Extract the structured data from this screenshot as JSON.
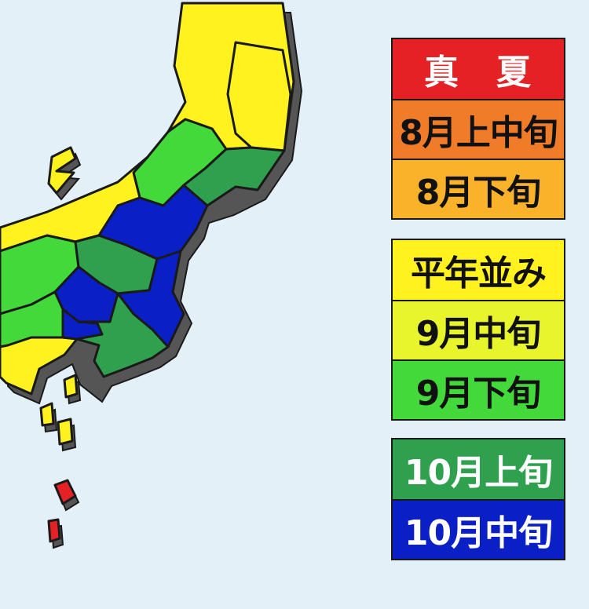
{
  "colors": {
    "sea": "#e3f0f8",
    "outline": "#1a1a1a",
    "shadow": "#555555"
  },
  "legend": {
    "groups": [
      {
        "items": [
          {
            "label": "真　夏",
            "color": "#e52125",
            "text_color": "#ffffff"
          },
          {
            "label": "8月上中旬",
            "color": "#f07c2a",
            "text_color": "#111111"
          },
          {
            "label": "8月下旬",
            "color": "#fbb22b",
            "text_color": "#111111"
          }
        ]
      },
      {
        "items": [
          {
            "label": "平年並み",
            "color": "#fff21f",
            "text_color": "#111111"
          },
          {
            "label": "9月中旬",
            "color": "#e8f52d",
            "text_color": "#111111"
          },
          {
            "label": "9月下旬",
            "color": "#43d93b",
            "text_color": "#111111"
          }
        ]
      },
      {
        "items": [
          {
            "label": "10月上旬",
            "color": "#2fa04d",
            "text_color": "#ffffff"
          },
          {
            "label": "10月中旬",
            "color": "#0a1fc6",
            "text_color": "#ffffff"
          }
        ]
      }
    ]
  }
}
